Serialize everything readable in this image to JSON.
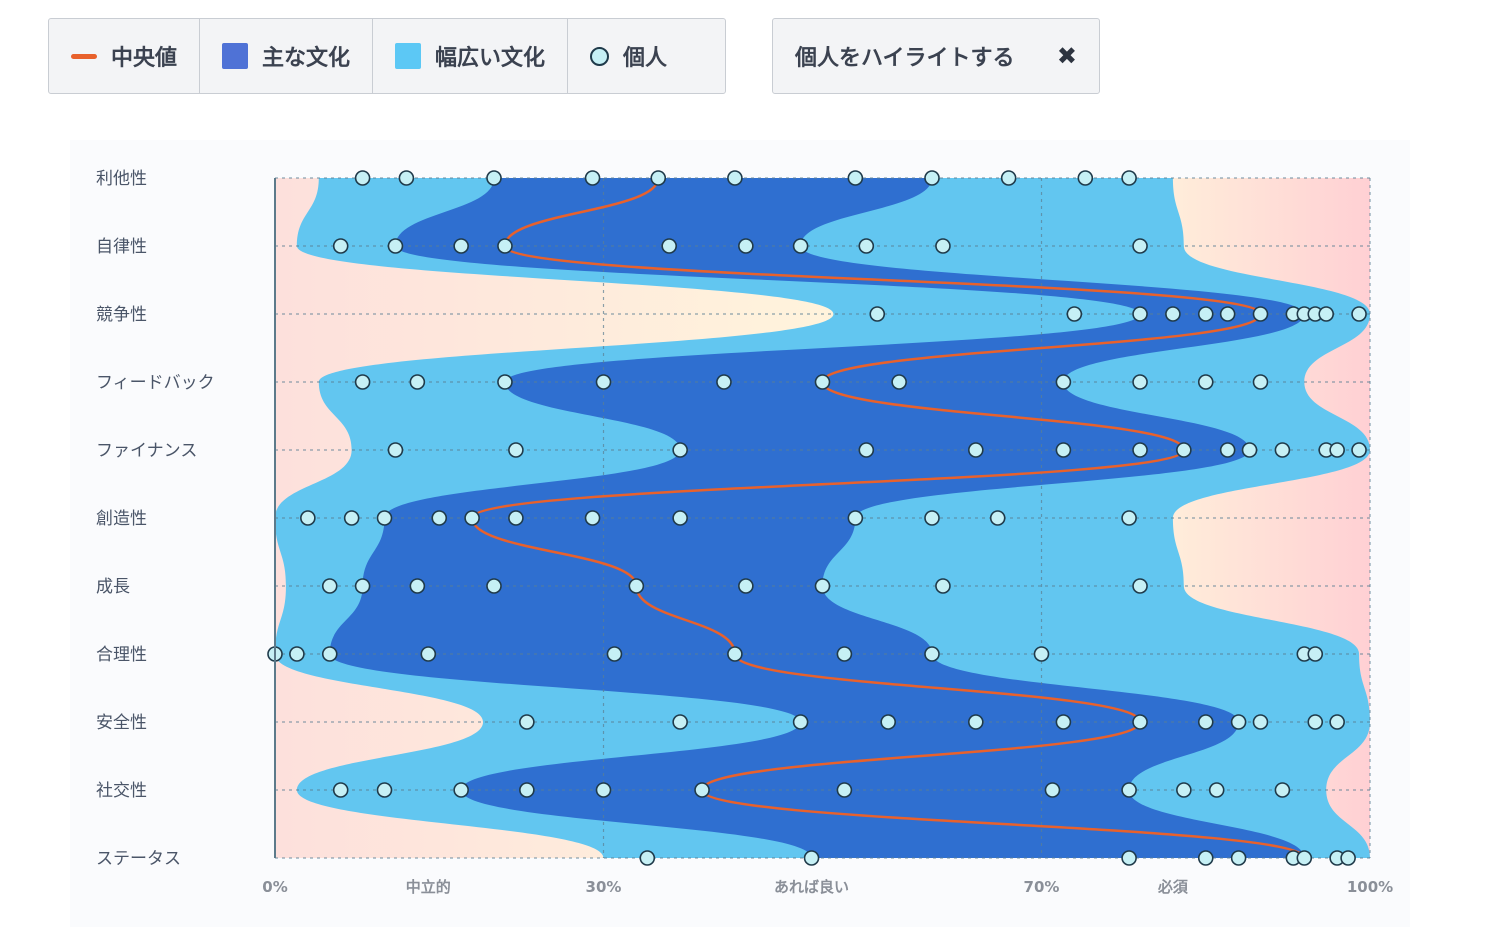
{
  "legend": {
    "median_label": "中央値",
    "core_label": "主な文化",
    "broad_label": "幅広い文化",
    "individual_label": "個人",
    "colors": {
      "median": "#e8612c",
      "core": "#2f6fd0",
      "broad": "#62c6f0",
      "individual": "#c6f0f5"
    }
  },
  "highlight_button": {
    "label": "個人をハイライトする",
    "close": "✖"
  },
  "chart_data": {
    "type": "ridgeline-density",
    "x_ticks": [
      "0%",
      "中立的",
      "30%",
      "あれば良い",
      "70%",
      "必須",
      "100%"
    ],
    "xlim": [
      0,
      100
    ],
    "rows": [
      {
        "label": "利他性",
        "median": 35,
        "individuals": [
          8,
          12,
          20,
          29,
          35,
          42,
          53,
          60,
          67,
          74,
          78
        ]
      },
      {
        "label": "自律性",
        "median": 21,
        "individuals": [
          6,
          11,
          17,
          21,
          36,
          43,
          48,
          54,
          61,
          79
        ]
      },
      {
        "label": "競争性",
        "median": 90,
        "individuals": [
          55,
          73,
          79,
          82,
          85,
          87,
          90,
          93,
          94,
          95,
          96,
          99
        ]
      },
      {
        "label": "フィードバック",
        "median": 50,
        "individuals": [
          8,
          13,
          21,
          30,
          41,
          50,
          57,
          72,
          79,
          85,
          90
        ]
      },
      {
        "label": "ファイナンス",
        "median": 83,
        "individuals": [
          11,
          22,
          37,
          54,
          64,
          72,
          79,
          83,
          87,
          89,
          92,
          96,
          97,
          99
        ]
      },
      {
        "label": "創造性",
        "median": 18,
        "individuals": [
          3,
          7,
          10,
          15,
          18,
          22,
          29,
          37,
          53,
          60,
          66,
          78
        ]
      },
      {
        "label": "成長",
        "median": 33,
        "individuals": [
          5,
          8,
          13,
          20,
          33,
          43,
          50,
          61,
          79
        ]
      },
      {
        "label": "合理性",
        "median": 42,
        "individuals": [
          0,
          2,
          5,
          14,
          31,
          42,
          52,
          60,
          70,
          94,
          95
        ]
      },
      {
        "label": "安全性",
        "median": 79,
        "individuals": [
          23,
          37,
          48,
          56,
          64,
          72,
          79,
          85,
          88,
          90,
          95,
          97
        ]
      },
      {
        "label": "社交性",
        "median": 39,
        "individuals": [
          6,
          10,
          17,
          23,
          30,
          39,
          52,
          71,
          78,
          83,
          86,
          92
        ]
      },
      {
        "label": "ステータス",
        "median": 94,
        "individuals": [
          34,
          49,
          78,
          85,
          88,
          93,
          94,
          97,
          98
        ]
      }
    ]
  }
}
